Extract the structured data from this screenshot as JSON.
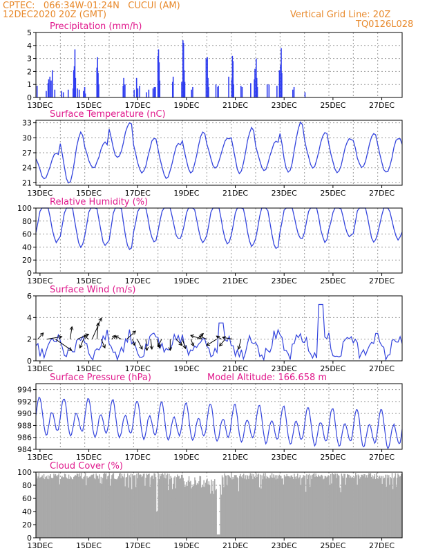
{
  "header": {
    "station_line": "CPTEC:   066:34W-01:24N   CUCUI (AM)",
    "date_line": "12DEC2020 20Z (GMT)",
    "grid_note": "Vertical Grid Line: 20Z",
    "code": "TQ0126L028"
  },
  "colors": {
    "header": "#e8892b",
    "title": "#e0198c",
    "series": "#3344dd",
    "bars": "#2f3df0",
    "cloud": "#a9a9a9"
  },
  "x_axis": {
    "labels": [
      "13DEC",
      "15DEC",
      "17DEC",
      "19DEC",
      "21DEC",
      "23DEC",
      "25DEC",
      "27DEC"
    ],
    "start": "12DEC2020 20Z",
    "end": "27DEC2020 20Z"
  },
  "chart_data": [
    {
      "type": "bar",
      "title": "Precipitation (mm/h)",
      "ylim": [
        0,
        5
      ],
      "yticks": [
        0,
        1,
        2,
        3,
        4,
        5
      ],
      "events": [
        {
          "day": 0.05,
          "v": 0.9
        },
        {
          "day": 0.8,
          "v": 0.5
        },
        {
          "day": 0.95,
          "v": 1.1
        },
        {
          "day": 1.0,
          "v": 1.4
        },
        {
          "day": 1.1,
          "v": 1.6
        },
        {
          "day": 1.2,
          "v": 1.3
        },
        {
          "day": 1.3,
          "v": 2.1
        },
        {
          "day": 1.5,
          "v": 0.6
        },
        {
          "day": 2.05,
          "v": 0.5
        },
        {
          "day": 2.2,
          "v": 0.4
        },
        {
          "day": 2.6,
          "v": 0.6
        },
        {
          "day": 3.0,
          "v": 0.7
        },
        {
          "day": 3.05,
          "v": 2.1
        },
        {
          "day": 3.1,
          "v": 2.4
        },
        {
          "day": 3.15,
          "v": 3.7
        },
        {
          "day": 3.2,
          "v": 1.5
        },
        {
          "day": 3.35,
          "v": 0.7
        },
        {
          "day": 3.5,
          "v": 0.6
        },
        {
          "day": 3.85,
          "v": 0.5
        },
        {
          "day": 3.95,
          "v": 0.8
        },
        {
          "day": 4.0,
          "v": 0.3
        },
        {
          "day": 4.95,
          "v": 2.3
        },
        {
          "day": 5.0,
          "v": 3.1
        },
        {
          "day": 5.05,
          "v": 1.9
        },
        {
          "day": 5.1,
          "v": 1.0
        },
        {
          "day": 7.1,
          "v": 0.9
        },
        {
          "day": 7.15,
          "v": 1.5
        },
        {
          "day": 7.25,
          "v": 1.0
        },
        {
          "day": 8.0,
          "v": 0.6
        },
        {
          "day": 8.2,
          "v": 1.5
        },
        {
          "day": 8.3,
          "v": 0.7
        },
        {
          "day": 8.45,
          "v": 0.9
        },
        {
          "day": 9.0,
          "v": 0.4
        },
        {
          "day": 9.2,
          "v": 0.6
        },
        {
          "day": 9.55,
          "v": 0.7
        },
        {
          "day": 9.65,
          "v": 0.8
        },
        {
          "day": 9.75,
          "v": 0.8
        },
        {
          "day": 9.95,
          "v": 3.2
        },
        {
          "day": 10.0,
          "v": 3.7
        },
        {
          "day": 10.05,
          "v": 2.7
        },
        {
          "day": 10.1,
          "v": 1.3
        },
        {
          "day": 11.15,
          "v": 1.2
        },
        {
          "day": 11.2,
          "v": 1.6
        },
        {
          "day": 11.9,
          "v": 1.2
        },
        {
          "day": 12.0,
          "v": 4.4
        },
        {
          "day": 12.05,
          "v": 4.2
        },
        {
          "day": 12.1,
          "v": 2.1
        },
        {
          "day": 12.15,
          "v": 1.2
        },
        {
          "day": 12.7,
          "v": 0.6
        },
        {
          "day": 12.8,
          "v": 0.8
        },
        {
          "day": 13.9,
          "v": 3.0
        },
        {
          "day": 14.0,
          "v": 3.1
        },
        {
          "day": 14.05,
          "v": 1.5
        },
        {
          "day": 14.1,
          "v": 0.8
        },
        {
          "day": 14.7,
          "v": 1.0
        },
        {
          "day": 14.85,
          "v": 0.8
        },
        {
          "day": 14.9,
          "v": 0.9
        },
        {
          "day": 15.75,
          "v": 1.6
        },
        {
          "day": 16.0,
          "v": 1.4
        },
        {
          "day": 16.05,
          "v": 3.2
        },
        {
          "day": 16.1,
          "v": 2.8
        },
        {
          "day": 16.15,
          "v": 1.0
        },
        {
          "day": 16.75,
          "v": 0.9
        },
        {
          "day": 16.85,
          "v": 0.8
        },
        {
          "day": 17.55,
          "v": 1.1
        },
        {
          "day": 17.85,
          "v": 1.4
        },
        {
          "day": 17.9,
          "v": 2.2
        },
        {
          "day": 18.0,
          "v": 3.0
        },
        {
          "day": 18.05,
          "v": 1.5
        },
        {
          "day": 18.1,
          "v": 0.8
        },
        {
          "day": 18.9,
          "v": 1.0
        },
        {
          "day": 19.05,
          "v": 1.0
        },
        {
          "day": 19.7,
          "v": 0.9
        },
        {
          "day": 19.9,
          "v": 2.1
        },
        {
          "day": 20.0,
          "v": 2.5
        },
        {
          "day": 20.05,
          "v": 3.8
        },
        {
          "day": 20.1,
          "v": 1.9
        },
        {
          "day": 21.0,
          "v": 0.6
        },
        {
          "day": 21.1,
          "v": 0.8
        },
        {
          "day": 22.0,
          "v": 0.4
        }
      ]
    },
    {
      "type": "line",
      "title": "Surface Temperature (nC)",
      "ylim": [
        20.5,
        33.5
      ],
      "yticks": [
        21,
        24,
        27,
        30,
        33
      ],
      "max_day": [
        1.8,
        3.8,
        5.8,
        7.8,
        9.8,
        11.8,
        13.8,
        15.8,
        17.8,
        19.8,
        21.8,
        23.8,
        25.8,
        27.8,
        29.8
      ],
      "max_val": [
        27,
        31,
        29,
        33,
        30,
        29,
        31,
        30,
        32,
        29.5,
        33,
        31,
        30,
        31,
        30
      ],
      "min_val": [
        22,
        21,
        24,
        26,
        23,
        22,
        23,
        24,
        23,
        23.5,
        23,
        24,
        23,
        24,
        23
      ]
    },
    {
      "type": "line",
      "title": "Relative Humidity (%)",
      "ylim": [
        0,
        100
      ],
      "yticks": [
        0,
        20,
        40,
        60,
        80,
        100
      ],
      "max_val": [
        100,
        100,
        100,
        100,
        100,
        100,
        95,
        100,
        100,
        95,
        100,
        100,
        95,
        100,
        90
      ],
      "min_val": [
        48,
        40,
        42,
        35,
        48,
        52,
        48,
        45,
        42,
        38,
        52,
        48,
        55,
        48,
        52
      ]
    },
    {
      "type": "line",
      "title": "Surface Wind (m/s)",
      "ylim": [
        0,
        6
      ],
      "yticks": [
        0,
        2,
        4,
        6
      ],
      "arrows": [
        {
          "day": 0.15,
          "u": 0.9,
          "v": 1.0
        },
        {
          "day": 0.9,
          "u": 2.4,
          "v": 0.4
        },
        {
          "day": 1.6,
          "u": 2.6,
          "v": -1.8
        },
        {
          "day": 2.8,
          "u": 0.3,
          "v": 2.0
        },
        {
          "day": 3.4,
          "u": 1.8,
          "v": 0.8
        },
        {
          "day": 3.9,
          "u": -0.6,
          "v": -1.4
        },
        {
          "day": 4.3,
          "u": -0.7,
          "v": 0.6
        },
        {
          "day": 4.6,
          "u": 1.5,
          "v": 3.4
        },
        {
          "day": 5.0,
          "u": 0.2,
          "v": 2.6
        },
        {
          "day": 5.35,
          "u": 0.6,
          "v": -1.4
        },
        {
          "day": 6.2,
          "u": 0.6,
          "v": 0.6
        },
        {
          "day": 7.0,
          "u": -1.0,
          "v": 0.5
        },
        {
          "day": 7.45,
          "u": 1.4,
          "v": 1.3
        },
        {
          "day": 7.9,
          "u": 0.4,
          "v": -1.0
        },
        {
          "day": 8.3,
          "u": 0.8,
          "v": -1.6
        },
        {
          "day": 9.0,
          "u": 0.2,
          "v": -1.8
        },
        {
          "day": 9.4,
          "u": 0.2,
          "v": -1.6
        },
        {
          "day": 9.9,
          "u": 0.5,
          "v": -1.4
        },
        {
          "day": 10.3,
          "u": -0.6,
          "v": -1.2
        },
        {
          "day": 11.0,
          "u": 0.0,
          "v": -1.8
        },
        {
          "day": 11.5,
          "u": 0.9,
          "v": -1.0
        },
        {
          "day": 12.0,
          "u": 0.5,
          "v": -1.5
        },
        {
          "day": 12.7,
          "u": 0.4,
          "v": -1.1
        },
        {
          "day": 13.2,
          "u": 1.0,
          "v": 0.9
        },
        {
          "day": 13.6,
          "u": -1.8,
          "v": 0.6
        },
        {
          "day": 14.0,
          "u": -1.2,
          "v": 0.5
        },
        {
          "day": 14.8,
          "u": -1.6,
          "v": -1.0
        },
        {
          "day": 15.2,
          "u": -0.8,
          "v": 0.5
        },
        {
          "day": 15.5,
          "u": -0.9,
          "v": -1.1
        },
        {
          "day": 16.1,
          "u": -1.6,
          "v": 0.3
        },
        {
          "day": 16.8,
          "u": -0.4,
          "v": -1.6
        }
      ]
    },
    {
      "type": "line",
      "title": "Surface Pressure (hPa)",
      "annotation": "Model Altitude: 166.658 m",
      "ylim": [
        984,
        995
      ],
      "yticks": [
        984,
        986,
        988,
        990,
        992,
        994
      ]
    },
    {
      "type": "area",
      "title": "Cloud Cover (%)",
      "ylim": [
        0,
        100
      ],
      "yticks": [
        0,
        20,
        40,
        60,
        80,
        100
      ]
    }
  ]
}
